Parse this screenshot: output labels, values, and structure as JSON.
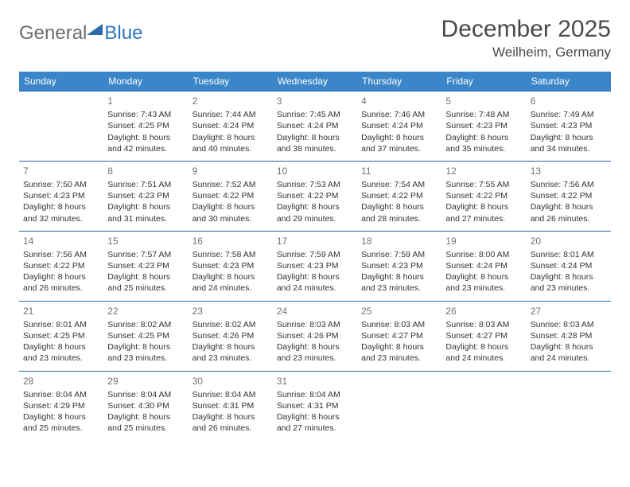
{
  "logo": {
    "text1": "General",
    "text2": "Blue"
  },
  "title": "December 2025",
  "location": "Weilheim, Germany",
  "styling": {
    "page_bg": "#ffffff",
    "header_bg": "#3b86c8",
    "header_text_color": "#ffffff",
    "cell_border_color": "#2b6aa8",
    "daynum_color": "#707070",
    "body_text_color": "#333333",
    "title_color": "#4a4a4a",
    "logo_general_color": "#6b6b6b",
    "logo_blue_color": "#2b77c0",
    "logo_triangle_color": "#2b6aa8",
    "font_family": "Arial",
    "title_fontsize": 30,
    "location_fontsize": 17,
    "header_fontsize": 12,
    "daynum_fontsize": 12,
    "body_fontsize": 10.5,
    "columns": 7,
    "rows": 5
  },
  "weekdays": [
    "Sunday",
    "Monday",
    "Tuesday",
    "Wednesday",
    "Thursday",
    "Friday",
    "Saturday"
  ],
  "weeks": [
    [
      null,
      {
        "day": "1",
        "sunrise": "Sunrise: 7:43 AM",
        "sunset": "Sunset: 4:25 PM",
        "dl1": "Daylight: 8 hours",
        "dl2": "and 42 minutes."
      },
      {
        "day": "2",
        "sunrise": "Sunrise: 7:44 AM",
        "sunset": "Sunset: 4:24 PM",
        "dl1": "Daylight: 8 hours",
        "dl2": "and 40 minutes."
      },
      {
        "day": "3",
        "sunrise": "Sunrise: 7:45 AM",
        "sunset": "Sunset: 4:24 PM",
        "dl1": "Daylight: 8 hours",
        "dl2": "and 38 minutes."
      },
      {
        "day": "4",
        "sunrise": "Sunrise: 7:46 AM",
        "sunset": "Sunset: 4:24 PM",
        "dl1": "Daylight: 8 hours",
        "dl2": "and 37 minutes."
      },
      {
        "day": "5",
        "sunrise": "Sunrise: 7:48 AM",
        "sunset": "Sunset: 4:23 PM",
        "dl1": "Daylight: 8 hours",
        "dl2": "and 35 minutes."
      },
      {
        "day": "6",
        "sunrise": "Sunrise: 7:49 AM",
        "sunset": "Sunset: 4:23 PM",
        "dl1": "Daylight: 8 hours",
        "dl2": "and 34 minutes."
      }
    ],
    [
      {
        "day": "7",
        "sunrise": "Sunrise: 7:50 AM",
        "sunset": "Sunset: 4:23 PM",
        "dl1": "Daylight: 8 hours",
        "dl2": "and 32 minutes."
      },
      {
        "day": "8",
        "sunrise": "Sunrise: 7:51 AM",
        "sunset": "Sunset: 4:23 PM",
        "dl1": "Daylight: 8 hours",
        "dl2": "and 31 minutes."
      },
      {
        "day": "9",
        "sunrise": "Sunrise: 7:52 AM",
        "sunset": "Sunset: 4:22 PM",
        "dl1": "Daylight: 8 hours",
        "dl2": "and 30 minutes."
      },
      {
        "day": "10",
        "sunrise": "Sunrise: 7:53 AM",
        "sunset": "Sunset: 4:22 PM",
        "dl1": "Daylight: 8 hours",
        "dl2": "and 29 minutes."
      },
      {
        "day": "11",
        "sunrise": "Sunrise: 7:54 AM",
        "sunset": "Sunset: 4:22 PM",
        "dl1": "Daylight: 8 hours",
        "dl2": "and 28 minutes."
      },
      {
        "day": "12",
        "sunrise": "Sunrise: 7:55 AM",
        "sunset": "Sunset: 4:22 PM",
        "dl1": "Daylight: 8 hours",
        "dl2": "and 27 minutes."
      },
      {
        "day": "13",
        "sunrise": "Sunrise: 7:56 AM",
        "sunset": "Sunset: 4:22 PM",
        "dl1": "Daylight: 8 hours",
        "dl2": "and 26 minutes."
      }
    ],
    [
      {
        "day": "14",
        "sunrise": "Sunrise: 7:56 AM",
        "sunset": "Sunset: 4:22 PM",
        "dl1": "Daylight: 8 hours",
        "dl2": "and 26 minutes."
      },
      {
        "day": "15",
        "sunrise": "Sunrise: 7:57 AM",
        "sunset": "Sunset: 4:23 PM",
        "dl1": "Daylight: 8 hours",
        "dl2": "and 25 minutes."
      },
      {
        "day": "16",
        "sunrise": "Sunrise: 7:58 AM",
        "sunset": "Sunset: 4:23 PM",
        "dl1": "Daylight: 8 hours",
        "dl2": "and 24 minutes."
      },
      {
        "day": "17",
        "sunrise": "Sunrise: 7:59 AM",
        "sunset": "Sunset: 4:23 PM",
        "dl1": "Daylight: 8 hours",
        "dl2": "and 24 minutes."
      },
      {
        "day": "18",
        "sunrise": "Sunrise: 7:59 AM",
        "sunset": "Sunset: 4:23 PM",
        "dl1": "Daylight: 8 hours",
        "dl2": "and 23 minutes."
      },
      {
        "day": "19",
        "sunrise": "Sunrise: 8:00 AM",
        "sunset": "Sunset: 4:24 PM",
        "dl1": "Daylight: 8 hours",
        "dl2": "and 23 minutes."
      },
      {
        "day": "20",
        "sunrise": "Sunrise: 8:01 AM",
        "sunset": "Sunset: 4:24 PM",
        "dl1": "Daylight: 8 hours",
        "dl2": "and 23 minutes."
      }
    ],
    [
      {
        "day": "21",
        "sunrise": "Sunrise: 8:01 AM",
        "sunset": "Sunset: 4:25 PM",
        "dl1": "Daylight: 8 hours",
        "dl2": "and 23 minutes."
      },
      {
        "day": "22",
        "sunrise": "Sunrise: 8:02 AM",
        "sunset": "Sunset: 4:25 PM",
        "dl1": "Daylight: 8 hours",
        "dl2": "and 23 minutes."
      },
      {
        "day": "23",
        "sunrise": "Sunrise: 8:02 AM",
        "sunset": "Sunset: 4:26 PM",
        "dl1": "Daylight: 8 hours",
        "dl2": "and 23 minutes."
      },
      {
        "day": "24",
        "sunrise": "Sunrise: 8:03 AM",
        "sunset": "Sunset: 4:26 PM",
        "dl1": "Daylight: 8 hours",
        "dl2": "and 23 minutes."
      },
      {
        "day": "25",
        "sunrise": "Sunrise: 8:03 AM",
        "sunset": "Sunset: 4:27 PM",
        "dl1": "Daylight: 8 hours",
        "dl2": "and 23 minutes."
      },
      {
        "day": "26",
        "sunrise": "Sunrise: 8:03 AM",
        "sunset": "Sunset: 4:27 PM",
        "dl1": "Daylight: 8 hours",
        "dl2": "and 24 minutes."
      },
      {
        "day": "27",
        "sunrise": "Sunrise: 8:03 AM",
        "sunset": "Sunset: 4:28 PM",
        "dl1": "Daylight: 8 hours",
        "dl2": "and 24 minutes."
      }
    ],
    [
      {
        "day": "28",
        "sunrise": "Sunrise: 8:04 AM",
        "sunset": "Sunset: 4:29 PM",
        "dl1": "Daylight: 8 hours",
        "dl2": "and 25 minutes."
      },
      {
        "day": "29",
        "sunrise": "Sunrise: 8:04 AM",
        "sunset": "Sunset: 4:30 PM",
        "dl1": "Daylight: 8 hours",
        "dl2": "and 25 minutes."
      },
      {
        "day": "30",
        "sunrise": "Sunrise: 8:04 AM",
        "sunset": "Sunset: 4:31 PM",
        "dl1": "Daylight: 8 hours",
        "dl2": "and 26 minutes."
      },
      {
        "day": "31",
        "sunrise": "Sunrise: 8:04 AM",
        "sunset": "Sunset: 4:31 PM",
        "dl1": "Daylight: 8 hours",
        "dl2": "and 27 minutes."
      },
      null,
      null,
      null
    ]
  ]
}
